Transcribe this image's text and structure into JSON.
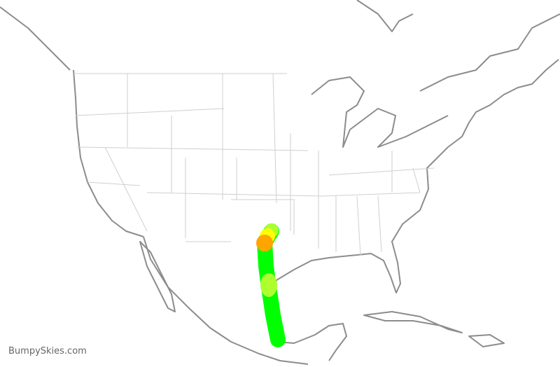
{
  "watermark": "BumpySkies.com",
  "colors": {
    "coastline": "#8c8c8c",
    "state_border": "#cfcfcf",
    "smooth": "#00ff00",
    "light": "#adff2f",
    "light_moderate": "#ffff00",
    "moderate": "#ffa500"
  },
  "flight_track": {
    "base_level": "smooth",
    "patches": [
      "light",
      "light_moderate",
      "moderate",
      "light"
    ]
  }
}
